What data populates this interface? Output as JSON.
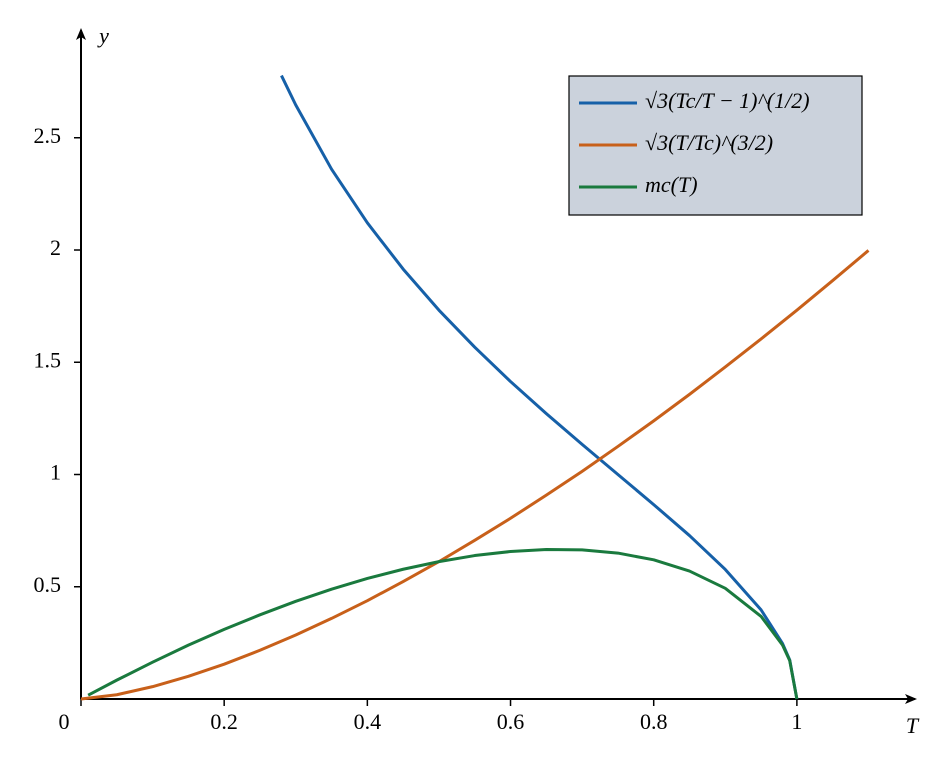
{
  "chart_data": {
    "type": "line",
    "xlabel": "T",
    "ylabel": "y",
    "xlim": [
      0,
      1.165
    ],
    "ylim": [
      0,
      2.98
    ],
    "xticks": [
      0,
      0.2,
      0.4,
      0.6,
      0.8,
      1
    ],
    "yticks": [
      0.5,
      1,
      1.5,
      2,
      2.5
    ],
    "legend": "upper right",
    "series": [
      {
        "name": "√3(Tc/T − 1)^(1/2)",
        "color": "#1660a8",
        "x": [
          0.28,
          0.3,
          0.35,
          0.4,
          0.45,
          0.5,
          0.55,
          0.6,
          0.65,
          0.7,
          0.75,
          0.8,
          0.85,
          0.9,
          0.95,
          0.98,
          0.99,
          1.0
        ],
        "values": [
          2.777,
          2.646,
          2.36,
          2.121,
          1.915,
          1.732,
          1.567,
          1.414,
          1.271,
          1.134,
          1.0,
          0.866,
          0.728,
          0.577,
          0.397,
          0.247,
          0.174,
          0
        ]
      },
      {
        "name": "√3(T/Tc)^(3/2)",
        "color": "#c8601a",
        "x": [
          0,
          0.05,
          0.1,
          0.15,
          0.2,
          0.25,
          0.3,
          0.35,
          0.4,
          0.45,
          0.5,
          0.55,
          0.6,
          0.65,
          0.7,
          0.75,
          0.8,
          0.85,
          0.9,
          0.95,
          1.0,
          1.05,
          1.1
        ],
        "values": [
          0,
          0.019,
          0.055,
          0.101,
          0.155,
          0.217,
          0.285,
          0.359,
          0.438,
          0.523,
          0.612,
          0.707,
          0.805,
          0.908,
          1.014,
          1.125,
          1.239,
          1.357,
          1.479,
          1.604,
          1.732,
          1.864,
          1.998
        ]
      },
      {
        "name": "mc(T)",
        "color": "#1a7a3e",
        "x": [
          0.01,
          0.05,
          0.1,
          0.15,
          0.2,
          0.25,
          0.3,
          0.35,
          0.4,
          0.45,
          0.5,
          0.55,
          0.6,
          0.65,
          0.7,
          0.75,
          0.8,
          0.85,
          0.9,
          0.95,
          0.98,
          0.99,
          1.0
        ],
        "values": [
          0.017,
          0.084,
          0.164,
          0.24,
          0.31,
          0.375,
          0.435,
          0.489,
          0.537,
          0.578,
          0.612,
          0.639,
          0.657,
          0.666,
          0.664,
          0.65,
          0.62,
          0.57,
          0.493,
          0.368,
          0.24,
          0.171,
          0
        ]
      }
    ]
  }
}
